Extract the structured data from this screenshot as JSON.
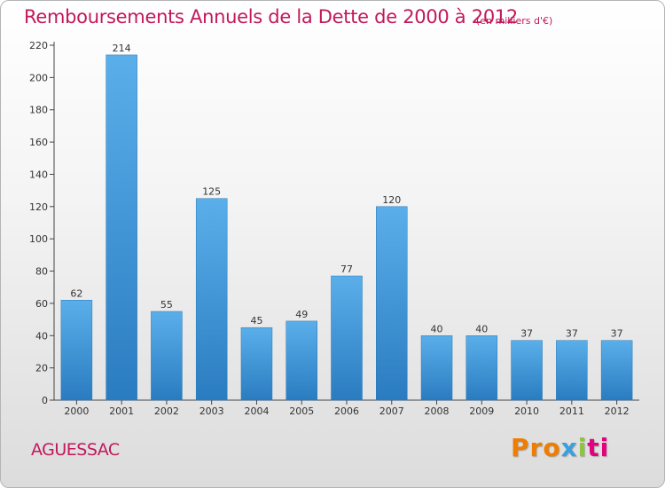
{
  "chart_data": {
    "type": "bar",
    "title": "Remboursements Annuels de la Dette de 2000 à 2012",
    "subtitle": "(en milliers d'€)",
    "xlabel": "",
    "ylabel": "",
    "categories": [
      "2000",
      "2001",
      "2002",
      "2003",
      "2004",
      "2005",
      "2006",
      "2007",
      "2008",
      "2009",
      "2010",
      "2011",
      "2012"
    ],
    "values": [
      62,
      214,
      55,
      125,
      45,
      49,
      77,
      120,
      40,
      40,
      37,
      37,
      37
    ],
    "ylim": [
      0,
      220
    ],
    "yticks": [
      0,
      20,
      40,
      60,
      80,
      100,
      120,
      140,
      160,
      180,
      200,
      220
    ],
    "grid": false,
    "legend": "none",
    "bar_color": "#3d93d6"
  },
  "footer": {
    "commune": "AGUESSAC",
    "logo_text": [
      "Pro",
      "x",
      "i",
      "ti"
    ],
    "logo_name": "proxiti-logo"
  }
}
